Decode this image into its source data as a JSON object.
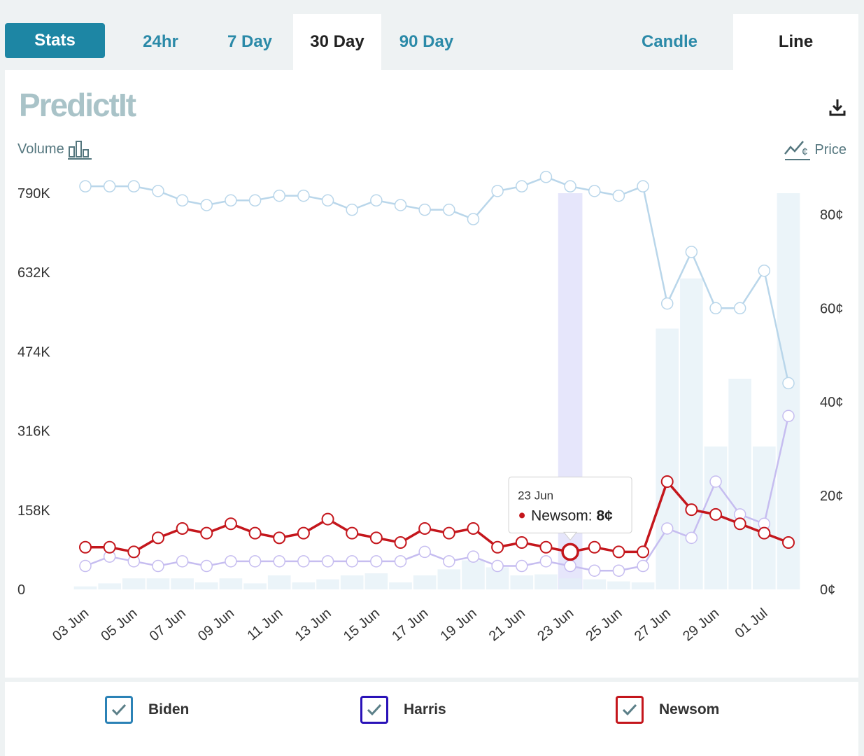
{
  "tabs": {
    "stats": "Stats",
    "h24": "24hr",
    "d7": "7 Day",
    "d30": "30 Day",
    "d90": "90 Day",
    "candle": "Candle",
    "line": "Line"
  },
  "logo_text": "PredictIt",
  "toggles": {
    "volume": "Volume",
    "price": "Price"
  },
  "tooltip": {
    "date": "23 Jun",
    "series": "Newsom",
    "value": "8¢"
  },
  "legend": [
    {
      "name": "Biden",
      "color": "#2b82b6"
    },
    {
      "name": "Harris",
      "color": "#2a12b8"
    },
    {
      "name": "Newsom",
      "color": "#c4161c"
    }
  ],
  "chart_data": {
    "type": "line",
    "title": "",
    "xlabel": "",
    "ylabel_left": "Volume",
    "ylabel_right": "Price",
    "left_axis_ticks": [
      "0",
      "158K",
      "316K",
      "474K",
      "632K",
      "790K"
    ],
    "left_axis_range": [
      0,
      790000
    ],
    "right_axis_ticks": [
      "0¢",
      "20¢",
      "40¢",
      "60¢",
      "80¢"
    ],
    "right_axis_range": [
      0,
      92
    ],
    "x_tick_labels": [
      "03 Jun",
      "05 Jun",
      "07 Jun",
      "09 Jun",
      "11 Jun",
      "13 Jun",
      "15 Jun",
      "17 Jun",
      "19 Jun",
      "21 Jun",
      "23 Jun",
      "25 Jun",
      "27 Jun",
      "29 Jun",
      "01 Jul"
    ],
    "categories": [
      "03 Jun",
      "04 Jun",
      "05 Jun",
      "06 Jun",
      "07 Jun",
      "08 Jun",
      "09 Jun",
      "10 Jun",
      "11 Jun",
      "12 Jun",
      "13 Jun",
      "14 Jun",
      "15 Jun",
      "16 Jun",
      "17 Jun",
      "18 Jun",
      "19 Jun",
      "20 Jun",
      "21 Jun",
      "22 Jun",
      "23 Jun",
      "24 Jun",
      "25 Jun",
      "26 Jun",
      "27 Jun",
      "28 Jun",
      "29 Jun",
      "30 Jun",
      "01 Jul",
      "02 Jul"
    ],
    "volume": [
      6000,
      12000,
      22000,
      22000,
      22000,
      14000,
      22000,
      12000,
      28000,
      14000,
      20000,
      28000,
      32000,
      14000,
      28000,
      40000,
      58000,
      44000,
      28000,
      30000,
      22000,
      20000,
      16000,
      14000,
      520000,
      620000,
      285000,
      420000,
      285000,
      790000
    ],
    "highlight_category": "23 Jun",
    "series": [
      {
        "name": "Biden",
        "color": "#b9d6ea",
        "values": [
          86,
          86,
          86,
          85,
          83,
          82,
          83,
          83,
          84,
          84,
          83,
          81,
          83,
          82,
          81,
          81,
          79,
          85,
          86,
          88,
          86,
          85,
          84,
          86,
          61,
          72,
          60,
          60,
          68,
          44
        ]
      },
      {
        "name": "Harris",
        "color": "#c6bdf0",
        "values": [
          5,
          7,
          6,
          5,
          6,
          5,
          6,
          6,
          6,
          6,
          6,
          6,
          6,
          6,
          8,
          6,
          7,
          5,
          5,
          6,
          5,
          4,
          4,
          5,
          13,
          11,
          23,
          16,
          14,
          37
        ]
      },
      {
        "name": "Newsom",
        "color": "#c4161c",
        "values": [
          9,
          9,
          8,
          11,
          13,
          12,
          14,
          12,
          11,
          12,
          15,
          12,
          11,
          10,
          13,
          12,
          13,
          9,
          10,
          9,
          8,
          9,
          8,
          8,
          23,
          17,
          16,
          14,
          12,
          10
        ]
      }
    ]
  }
}
